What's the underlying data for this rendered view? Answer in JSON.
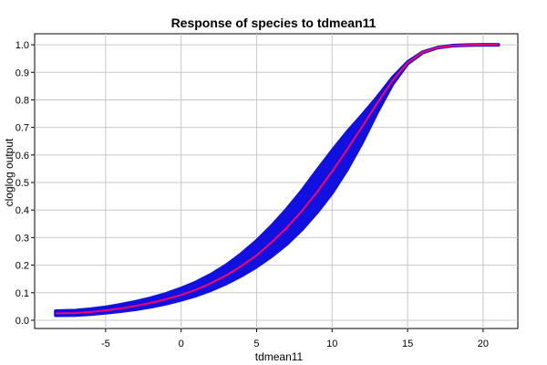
{
  "chart_data": {
    "type": "line",
    "title": "Response of species to tdmean11",
    "xlabel": "tdmean11",
    "ylabel": "cloglog output",
    "xlim": [
      -9.7,
      22.3
    ],
    "ylim": [
      -0.03,
      1.04
    ],
    "x_ticks": [
      -5,
      0,
      5,
      10,
      15,
      20
    ],
    "y_ticks": [
      0.0,
      0.1,
      0.2,
      0.3,
      0.4,
      0.5,
      0.6,
      0.7,
      0.8,
      0.9,
      1.0
    ],
    "x_tick_labels": [
      "-5",
      "0",
      "5",
      "10",
      "15",
      "20"
    ],
    "y_tick_labels": [
      "0.0",
      "0.1",
      "0.2",
      "0.3",
      "0.4",
      "0.5",
      "0.6",
      "0.7",
      "0.8",
      "0.9",
      "1.0"
    ],
    "grid": true,
    "series": [
      {
        "role": "mean",
        "color": "#ff0066",
        "x": [
          -8.3,
          -7,
          -6,
          -5,
          -4,
          -3,
          -2,
          -1,
          0,
          1,
          2,
          3,
          4,
          5,
          6,
          7,
          8,
          9,
          10,
          11,
          12,
          13,
          14,
          15,
          16,
          17,
          18,
          19,
          20,
          21
        ],
        "values": [
          0.025,
          0.026,
          0.03,
          0.036,
          0.043,
          0.052,
          0.063,
          0.076,
          0.092,
          0.111,
          0.135,
          0.163,
          0.197,
          0.236,
          0.283,
          0.336,
          0.397,
          0.465,
          0.54,
          0.62,
          0.703,
          0.79,
          0.87,
          0.935,
          0.973,
          0.99,
          0.997,
          0.999,
          1.0,
          1.0
        ]
      },
      {
        "role": "upper-band",
        "color": "#1010e0",
        "x": [
          -8.3,
          -7,
          -6,
          -5,
          -4,
          -3,
          -2,
          -1,
          0,
          1,
          2,
          3,
          4,
          5,
          6,
          7,
          8,
          9,
          10,
          11,
          12,
          13,
          14,
          15,
          16,
          17,
          18,
          19,
          20,
          21
        ],
        "values": [
          0.033,
          0.035,
          0.04,
          0.047,
          0.056,
          0.067,
          0.08,
          0.096,
          0.115,
          0.138,
          0.166,
          0.2,
          0.241,
          0.288,
          0.342,
          0.403,
          0.47,
          0.543,
          0.615,
          0.683,
          0.745,
          0.81,
          0.88,
          0.937,
          0.973,
          0.99,
          0.997,
          0.999,
          1.0,
          1.0
        ]
      },
      {
        "role": "lower-band",
        "color": "#1010e0",
        "x": [
          -8.3,
          -7,
          -6,
          -5,
          -4,
          -3,
          -2,
          -1,
          0,
          1,
          2,
          3,
          4,
          5,
          6,
          7,
          8,
          9,
          10,
          11,
          12,
          13,
          14,
          15,
          16,
          17,
          18,
          19,
          20,
          21
        ],
        "values": [
          0.018,
          0.019,
          0.022,
          0.027,
          0.033,
          0.04,
          0.049,
          0.06,
          0.074,
          0.09,
          0.11,
          0.134,
          0.162,
          0.195,
          0.233,
          0.277,
          0.33,
          0.392,
          0.463,
          0.548,
          0.647,
          0.757,
          0.857,
          0.932,
          0.972,
          0.99,
          0.997,
          0.999,
          1.0,
          1.0
        ]
      }
    ]
  },
  "colors": {
    "band": "#1010e0",
    "mean_line": "#ff0066",
    "grid": "#c8c8c8",
    "axis": "#000000"
  }
}
